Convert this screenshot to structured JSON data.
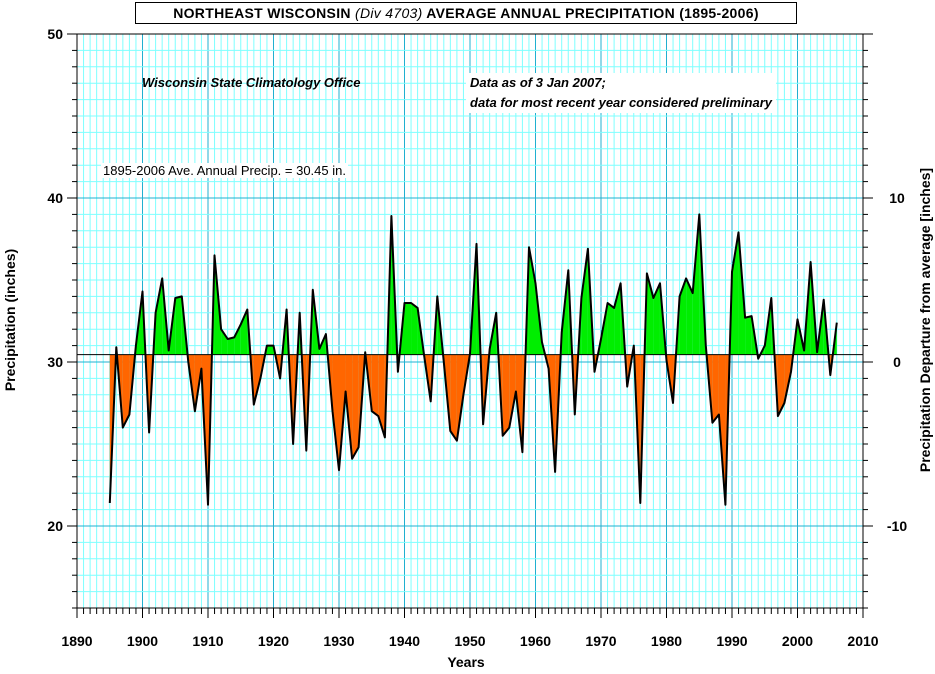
{
  "title": {
    "prefix": "NORTHEAST WISCONSIN",
    "division": "(Div 4703)",
    "suffix": "AVERAGE ANNUAL PRECIPITATION (1895-2006)"
  },
  "notes": {
    "office": "Wisconsin State Climatology Office",
    "data_line1": "Data as of 3 Jan 2007;",
    "data_line2": "data for most recent year considered preliminary",
    "average": "1895-2006 Ave. Annual Precip. = 30.45  in."
  },
  "colors": {
    "above": "#00ee00",
    "below": "#ff6600",
    "grid_minor": "#7fffff",
    "grid_major": "#20b0d0",
    "line": "#000000"
  },
  "chart_data": {
    "type": "area",
    "title": "NORTHEAST WISCONSIN (Div 4703) AVERAGE ANNUAL PRECIPITATION (1895-2006)",
    "xlabel": "Years",
    "ylabel": "Precipitation (inches)",
    "y2label": "Precipitation Departure from average [inches]",
    "xlim": [
      1890,
      2010
    ],
    "ylim": [
      15,
      50
    ],
    "y2lim": [
      -15,
      20
    ],
    "x_ticks": [
      1890,
      1900,
      1910,
      1920,
      1930,
      1940,
      1950,
      1960,
      1970,
      1980,
      1990,
      2000,
      2010
    ],
    "y_ticks": [
      20,
      30,
      40,
      50
    ],
    "y2_ticks": [
      -10,
      0,
      10
    ],
    "average": 30.45,
    "grid": true,
    "x": [
      1895,
      1896,
      1897,
      1898,
      1899,
      1900,
      1901,
      1902,
      1903,
      1904,
      1905,
      1906,
      1907,
      1908,
      1909,
      1910,
      1911,
      1912,
      1913,
      1914,
      1915,
      1916,
      1917,
      1918,
      1919,
      1920,
      1921,
      1922,
      1923,
      1924,
      1925,
      1926,
      1927,
      1928,
      1929,
      1930,
      1931,
      1932,
      1933,
      1934,
      1935,
      1936,
      1937,
      1938,
      1939,
      1940,
      1941,
      1942,
      1943,
      1944,
      1945,
      1946,
      1947,
      1948,
      1949,
      1950,
      1951,
      1952,
      1953,
      1954,
      1955,
      1956,
      1957,
      1958,
      1959,
      1960,
      1961,
      1962,
      1963,
      1964,
      1965,
      1966,
      1967,
      1968,
      1969,
      1970,
      1971,
      1972,
      1973,
      1974,
      1975,
      1976,
      1977,
      1978,
      1979,
      1980,
      1981,
      1982,
      1983,
      1984,
      1985,
      1986,
      1987,
      1988,
      1989,
      1990,
      1991,
      1992,
      1993,
      1994,
      1995,
      1996,
      1997,
      1998,
      1999,
      2000,
      2001,
      2002,
      2003,
      2004,
      2005,
      2006
    ],
    "values": [
      21.4,
      30.9,
      26.0,
      26.8,
      31.0,
      34.3,
      25.7,
      33.0,
      35.1,
      30.7,
      33.9,
      34.0,
      30.0,
      27.0,
      29.6,
      21.3,
      36.5,
      32.0,
      31.4,
      31.5,
      32.3,
      33.2,
      27.4,
      29.0,
      31.0,
      31.0,
      29.0,
      33.2,
      25.0,
      33.0,
      24.6,
      34.4,
      30.8,
      31.7,
      27.0,
      23.4,
      28.2,
      24.1,
      24.8,
      30.6,
      27.0,
      26.7,
      25.4,
      38.9,
      29.4,
      33.6,
      33.6,
      33.3,
      30.4,
      27.6,
      34.0,
      30.0,
      25.8,
      25.2,
      28.0,
      30.5,
      37.2,
      26.2,
      30.8,
      33.0,
      25.5,
      26.0,
      28.2,
      24.5,
      37.0,
      34.8,
      31.2,
      29.6,
      23.3,
      31.8,
      35.6,
      26.8,
      33.9,
      36.9,
      29.4,
      31.4,
      33.6,
      33.3,
      34.8,
      28.5,
      31.0,
      21.4,
      35.4,
      33.9,
      34.8,
      30.1,
      27.5,
      34.0,
      35.1,
      34.2,
      39.0,
      31.0,
      26.3,
      26.8,
      21.3,
      35.5,
      37.9,
      32.7,
      32.8,
      30.2,
      31.0,
      33.9,
      26.7,
      27.5,
      29.4,
      32.6,
      30.7,
      36.1,
      30.6,
      33.8,
      29.2,
      32.4
    ]
  }
}
